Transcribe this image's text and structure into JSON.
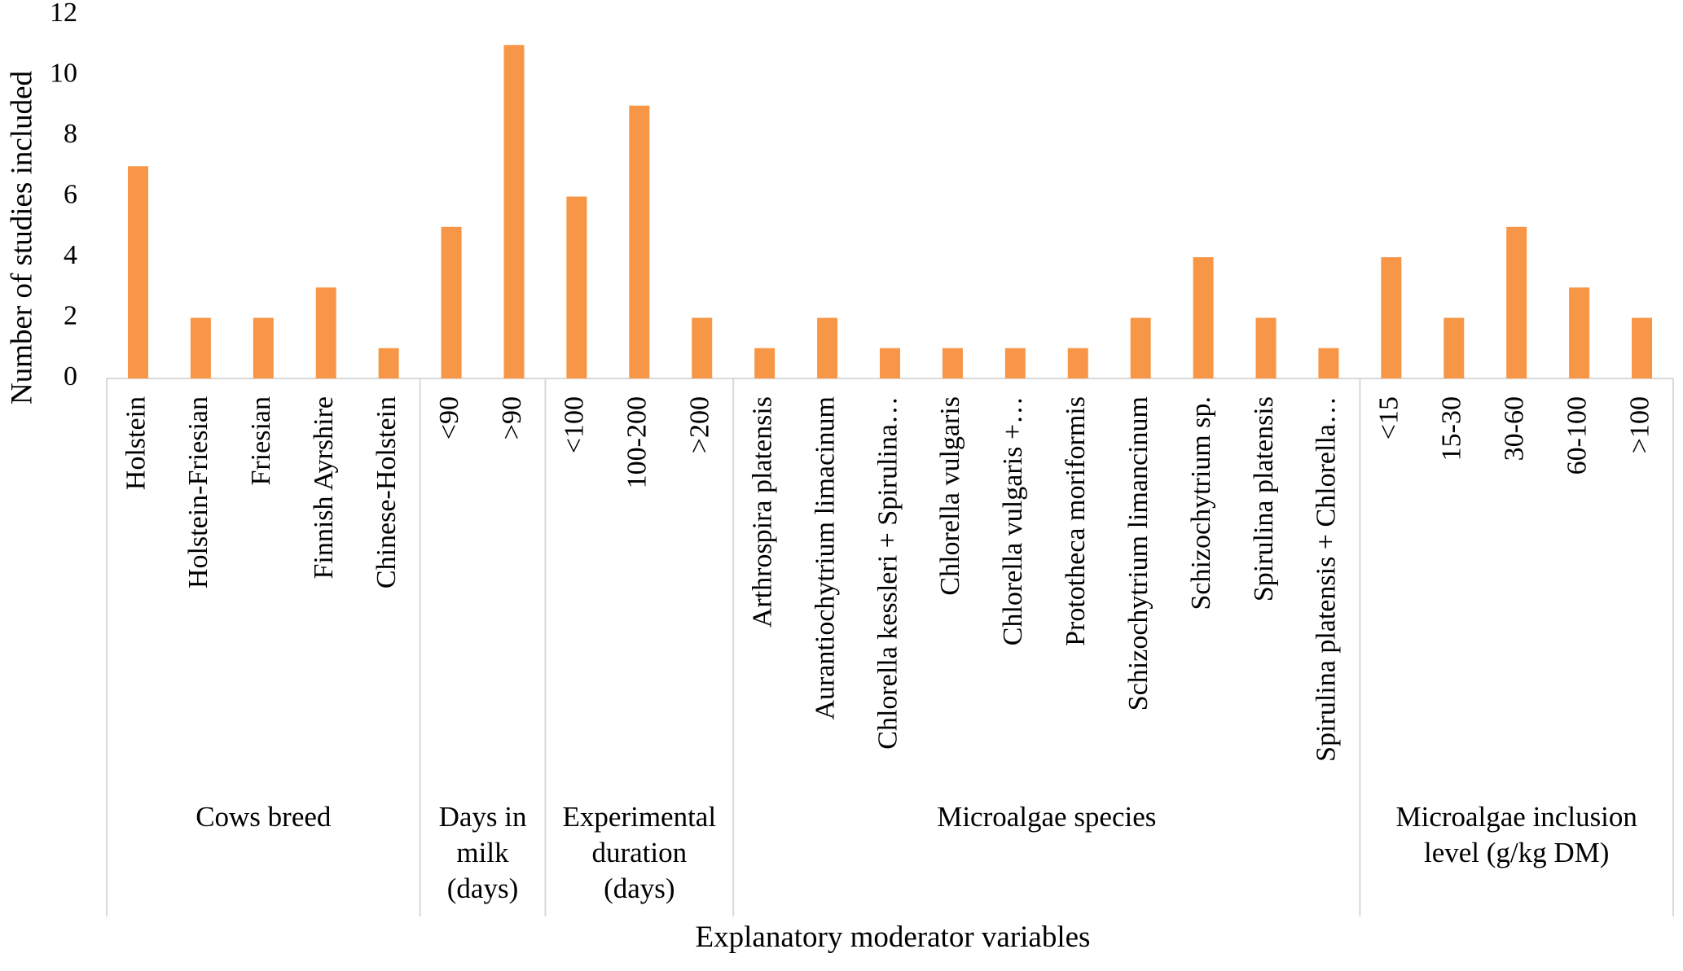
{
  "chart_data": {
    "type": "bar",
    "title": "",
    "xlabel": "Explanatory moderator variables",
    "ylabel": "Number of studies included",
    "ylim": [
      0,
      12
    ],
    "yticks": [
      0,
      2,
      4,
      6,
      8,
      10,
      12
    ],
    "grid": false,
    "bar_color": "#F79646",
    "groups": [
      {
        "label": "Cows breed",
        "categories": [
          "Holstein",
          "Holstein-Friesian",
          "Friesian",
          "Finnish Ayrshire",
          "Chinese-Holstein"
        ],
        "values": [
          7,
          2,
          2,
          3,
          1
        ]
      },
      {
        "label": "Days in milk (days)",
        "label_lines": [
          "Days in",
          "milk",
          "(days)"
        ],
        "categories": [
          "<90",
          ">90"
        ],
        "values": [
          5,
          11
        ]
      },
      {
        "label": "Experimental duration (days)",
        "label_lines": [
          "Experimental",
          "duration",
          "(days)"
        ],
        "categories": [
          "<100",
          "100-200",
          ">200"
        ],
        "values": [
          6,
          9,
          2
        ]
      },
      {
        "label": "Microalgae species",
        "categories": [
          "Arthrospira platensis",
          "Aurantiochytrium limacinum",
          "Chlorella kessleri + Spirulina…",
          "Chlorella vulgaris",
          "Chlorella vulgaris +…",
          "Prototheca moriformis",
          "Schizochytrium limancinum",
          "Schizochytrium sp.",
          "Spirulina platensis",
          "Spirulina platensis + Chlorella…"
        ],
        "values": [
          1,
          2,
          1,
          1,
          1,
          1,
          2,
          4,
          2,
          1
        ]
      },
      {
        "label": "Microalgae inclusion level (g/kg DM)",
        "label_lines": [
          "Microalgae inclusion",
          "level (g/kg DM)"
        ],
        "categories": [
          "<15",
          "15-30",
          "30-60",
          "60-100",
          ">100"
        ],
        "values": [
          4,
          2,
          5,
          3,
          2
        ]
      }
    ]
  }
}
